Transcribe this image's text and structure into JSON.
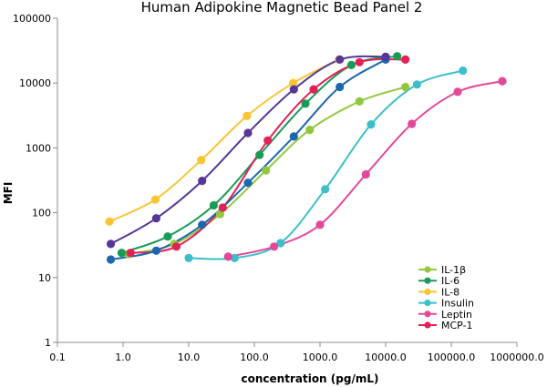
{
  "chart_data": {
    "type": "line",
    "title": "Human Adipokine Magnetic Bead Panel 2",
    "xlabel": "concentration (pg/mL)",
    "ylabel": "MFI",
    "xscale": "log",
    "yscale": "log",
    "xlim": [
      0.1,
      1000000
    ],
    "ylim": [
      1,
      100000
    ],
    "x_tick_values": [
      0.1,
      1,
      10,
      100,
      1000,
      10000,
      100000,
      1000000
    ],
    "x_tick_labels": [
      "0.1",
      "1.0",
      "10.0",
      "100.0",
      "1000.0",
      "10000.0",
      "100000.0",
      "1000000.0"
    ],
    "y_tick_values": [
      1,
      10,
      100,
      1000,
      10000,
      100000
    ],
    "y_tick_labels": [
      "1",
      "10",
      "100",
      "1000",
      "10000",
      "100000"
    ],
    "grid": false,
    "legend_position": "bottom-right",
    "series": [
      {
        "name": "IL-1β",
        "color": "#92c83e",
        "points": [
          [
            1.2,
            23
          ],
          [
            6,
            33
          ],
          [
            30,
            95
          ],
          [
            150,
            450
          ],
          [
            700,
            1900
          ],
          [
            4000,
            5200
          ],
          [
            20000,
            8700
          ]
        ]
      },
      {
        "name": "IL-6",
        "color": "#1a9b55",
        "points": [
          [
            0.95,
            24
          ],
          [
            4.8,
            43
          ],
          [
            24,
            130
          ],
          [
            120,
            780
          ],
          [
            600,
            4800
          ],
          [
            3000,
            19000
          ],
          [
            15000,
            26000
          ]
        ]
      },
      {
        "name": "IL-8",
        "color": "#f9c533",
        "points": [
          [
            0.62,
            73
          ],
          [
            3.1,
            160
          ],
          [
            15.5,
            650
          ],
          [
            77,
            3100
          ],
          [
            390,
            10000
          ],
          [
            1950,
            23000
          ]
        ]
      },
      {
        "name": "Insulin",
        "color": "#3cbfca",
        "points": [
          [
            10,
            20
          ],
          [
            50,
            20
          ],
          [
            250,
            34
          ],
          [
            1200,
            230
          ],
          [
            6000,
            2300
          ],
          [
            30000,
            9500
          ],
          [
            150000,
            15500
          ]
        ]
      },
      {
        "name": "Leptin",
        "color": "#e2489b",
        "points": [
          [
            40,
            21
          ],
          [
            200,
            30
          ],
          [
            1000,
            65
          ],
          [
            5000,
            390
          ],
          [
            25000,
            2350
          ],
          [
            125000,
            7300
          ],
          [
            600000,
            10700
          ]
        ]
      },
      {
        "name": "MCP-1",
        "color": "#e02256",
        "points": [
          [
            1.3,
            24
          ],
          [
            6.5,
            30
          ],
          [
            33,
            120
          ],
          [
            160,
            1300
          ],
          [
            800,
            8000
          ],
          [
            4000,
            21000
          ],
          [
            20000,
            23000
          ]
        ]
      },
      {
        "name": "",
        "color": "#1c67ae",
        "points": [
          [
            0.65,
            19
          ],
          [
            3.2,
            26
          ],
          [
            16,
            65
          ],
          [
            80,
            290
          ],
          [
            400,
            1500
          ],
          [
            2000,
            8700
          ],
          [
            10000,
            23000
          ]
        ]
      },
      {
        "name": "",
        "color": "#563797",
        "points": [
          [
            0.65,
            33
          ],
          [
            3.2,
            82
          ],
          [
            16,
            310
          ],
          [
            80,
            1700
          ],
          [
            400,
            8000
          ],
          [
            2000,
            23000
          ],
          [
            10000,
            25500
          ]
        ]
      }
    ]
  }
}
